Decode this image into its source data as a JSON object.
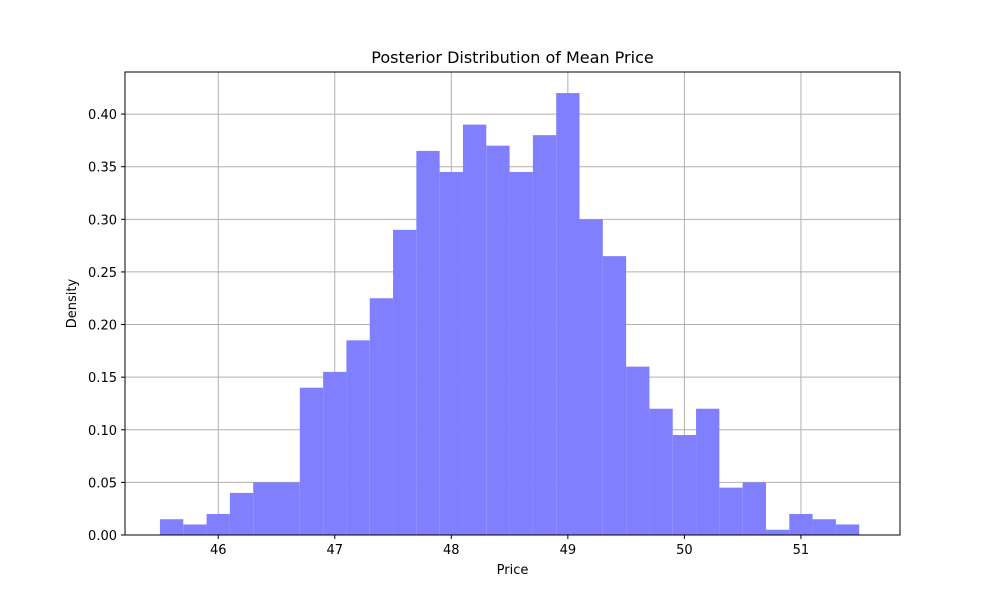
{
  "chart_data": {
    "type": "bar",
    "title": "Posterior Distribution of Mean Price",
    "xlabel": "Price",
    "ylabel": "Density",
    "xlim": [
      45.2,
      51.85
    ],
    "ylim": [
      0,
      0.44
    ],
    "x_ticks": [
      "46",
      "47",
      "48",
      "49",
      "50",
      "51"
    ],
    "y_ticks": [
      "0.00",
      "0.05",
      "0.10",
      "0.15",
      "0.20",
      "0.25",
      "0.30",
      "0.35",
      "0.40"
    ],
    "grid": true,
    "bar_color": "#8080ff",
    "bins": [
      {
        "x0": 45.5,
        "x1": 45.7,
        "value": 0.015
      },
      {
        "x0": 45.7,
        "x1": 45.9,
        "value": 0.01
      },
      {
        "x0": 45.9,
        "x1": 46.1,
        "value": 0.02
      },
      {
        "x0": 46.1,
        "x1": 46.3,
        "value": 0.04
      },
      {
        "x0": 46.3,
        "x1": 46.5,
        "value": 0.05
      },
      {
        "x0": 46.5,
        "x1": 46.7,
        "value": 0.05
      },
      {
        "x0": 46.7,
        "x1": 46.9,
        "value": 0.14
      },
      {
        "x0": 46.9,
        "x1": 47.1,
        "value": 0.155
      },
      {
        "x0": 47.1,
        "x1": 47.3,
        "value": 0.185
      },
      {
        "x0": 47.3,
        "x1": 47.5,
        "value": 0.225
      },
      {
        "x0": 47.5,
        "x1": 47.7,
        "value": 0.29
      },
      {
        "x0": 47.7,
        "x1": 47.9,
        "value": 0.365
      },
      {
        "x0": 47.9,
        "x1": 48.1,
        "value": 0.345
      },
      {
        "x0": 48.1,
        "x1": 48.3,
        "value": 0.39
      },
      {
        "x0": 48.3,
        "x1": 48.5,
        "value": 0.37
      },
      {
        "x0": 48.5,
        "x1": 48.7,
        "value": 0.345
      },
      {
        "x0": 48.7,
        "x1": 48.9,
        "value": 0.38
      },
      {
        "x0": 48.9,
        "x1": 49.1,
        "value": 0.42
      },
      {
        "x0": 49.1,
        "x1": 49.3,
        "value": 0.3
      },
      {
        "x0": 49.3,
        "x1": 49.5,
        "value": 0.265
      },
      {
        "x0": 49.5,
        "x1": 49.7,
        "value": 0.16
      },
      {
        "x0": 49.7,
        "x1": 49.9,
        "value": 0.12
      },
      {
        "x0": 49.9,
        "x1": 50.1,
        "value": 0.095
      },
      {
        "x0": 50.1,
        "x1": 50.3,
        "value": 0.12
      },
      {
        "x0": 50.3,
        "x1": 50.5,
        "value": 0.045
      },
      {
        "x0": 50.5,
        "x1": 50.7,
        "value": 0.05
      },
      {
        "x0": 50.7,
        "x1": 50.9,
        "value": 0.005
      },
      {
        "x0": 50.9,
        "x1": 51.1,
        "value": 0.02
      },
      {
        "x0": 51.1,
        "x1": 51.3,
        "value": 0.015
      },
      {
        "x0": 51.3,
        "x1": 51.5,
        "value": 0.01
      }
    ]
  }
}
